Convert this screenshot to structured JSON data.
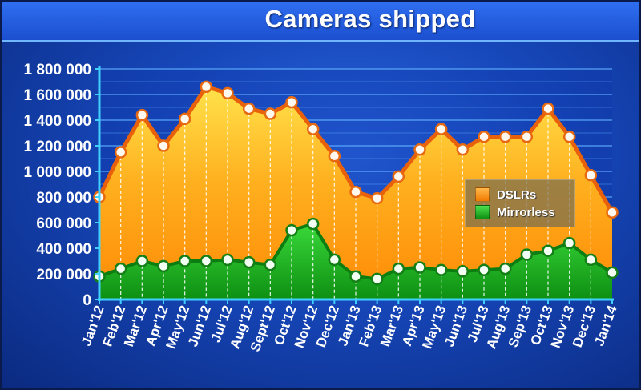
{
  "chart_data": {
    "type": "area",
    "title": "Cameras shipped",
    "xlabel": "",
    "ylabel": "",
    "ylim": [
      0,
      1800000
    ],
    "yticks": [
      "0",
      "200 000",
      "400 000",
      "600 000",
      "800 000",
      "1 000 000",
      "1 200 000",
      "1 400 000",
      "1 600 000",
      "1 800 000"
    ],
    "categories": [
      "Jan'12",
      "Feb'12",
      "Mar'12",
      "Apr'12",
      "May'12",
      "Jun'12",
      "Jul'12",
      "Aug'12",
      "Sept'12",
      "Oct'12",
      "Nov'12",
      "Dec'12",
      "Jan'13",
      "Feb'13",
      "Mar'13",
      "Apr'13",
      "May'13",
      "Jun'13",
      "Jul'13",
      "Aug'13",
      "Sep'13",
      "Oct'13",
      "Nov'13",
      "Dec'13",
      "Jan'14"
    ],
    "series": [
      {
        "name": "DSLRs",
        "color": "#f08a10",
        "values": [
          800000,
          1150000,
          1440000,
          1200000,
          1410000,
          1660000,
          1610000,
          1490000,
          1450000,
          1540000,
          1330000,
          1120000,
          840000,
          790000,
          960000,
          1170000,
          1330000,
          1170000,
          1270000,
          1270000,
          1270000,
          1490000,
          1270000,
          970000,
          680000
        ]
      },
      {
        "name": "Mirrorless",
        "color": "#1aa51a",
        "values": [
          180000,
          240000,
          300000,
          260000,
          300000,
          300000,
          310000,
          290000,
          270000,
          540000,
          590000,
          310000,
          180000,
          160000,
          240000,
          250000,
          230000,
          220000,
          230000,
          240000,
          350000,
          380000,
          440000,
          310000,
          210000
        ]
      }
    ],
    "grid": true,
    "legend_position": "right"
  }
}
